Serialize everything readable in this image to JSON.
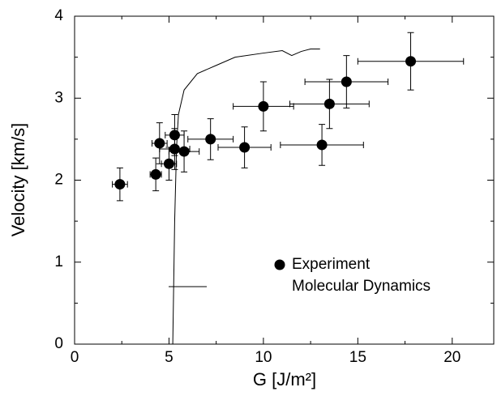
{
  "chart_data": {
    "type": "scatter",
    "x_label": "G [J/m²]",
    "y_label": "Velocity [km/s]",
    "xlim": [
      0,
      22.2
    ],
    "ylim": [
      0,
      4
    ],
    "xticks": [
      0,
      5,
      10,
      15,
      20
    ],
    "yticks": [
      0,
      1,
      2,
      3,
      4
    ],
    "xminorticks": [
      2.5,
      7.5,
      12.5,
      17.5
    ],
    "yminorticks": [
      0.5,
      1.5,
      2.5,
      3.5
    ],
    "legend": "lower right",
    "series": [
      {
        "name": "Experiment",
        "type": "scatter",
        "color": "#000000",
        "x": [
          2.4,
          4.3,
          4.5,
          5.0,
          5.3,
          5.3,
          5.8,
          7.2,
          9.0,
          10.0,
          13.1,
          13.5,
          14.4,
          17.8
        ],
        "values": [
          1.95,
          2.07,
          2.45,
          2.2,
          2.55,
          2.38,
          2.35,
          2.5,
          2.4,
          2.9,
          2.43,
          2.93,
          3.2,
          3.45
        ],
        "xerr": [
          0.4,
          0.3,
          0.4,
          0.4,
          0.5,
          0.8,
          0.8,
          1.2,
          1.4,
          1.6,
          2.2,
          2.1,
          2.2,
          2.8
        ],
        "yerr": [
          0.2,
          0.2,
          0.25,
          0.2,
          0.25,
          0.25,
          0.25,
          0.25,
          0.25,
          0.3,
          0.25,
          0.3,
          0.32,
          0.35
        ]
      },
      {
        "name": "Molecular Dynamics",
        "type": "line",
        "color": "#000000",
        "x": [
          5.2,
          5.3,
          5.4,
          5.5,
          5.8,
          6.5,
          7.5,
          8.5,
          10.0,
          11.0,
          11.5,
          12.0,
          12.5,
          13.0
        ],
        "values": [
          0,
          1.5,
          2.4,
          2.8,
          3.1,
          3.3,
          3.4,
          3.5,
          3.55,
          3.58,
          3.52,
          3.57,
          3.6,
          3.6
        ]
      }
    ]
  }
}
